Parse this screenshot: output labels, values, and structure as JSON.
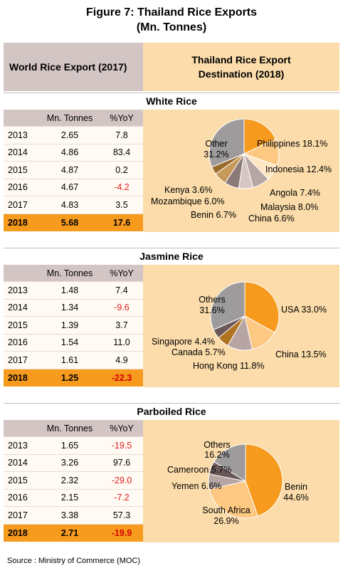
{
  "title": {
    "line1": "Figure 7: Thailand Rice Exports",
    "line2": "(Mn. Tonnes)"
  },
  "header": {
    "left": "World Rice Export (2017)",
    "right_line1": "Thailand Rice Export",
    "right_line2": "Destination (2018)"
  },
  "table_headers": {
    "mn": "Mn. Tonnes",
    "yoy": "%YoY"
  },
  "colors": {
    "orange": "#f79b1e",
    "light_orange": "#fcc882",
    "cream": "#ffe0b3",
    "peach": "#fbd7a6",
    "mauve": "#b7a5a4",
    "rose": "#cdb7b3",
    "dark_brown": "#6b5757",
    "brown": "#a9794a",
    "grey": "#9d9b9b",
    "tan": "#c8a482",
    "negative": "#e02020"
  },
  "chart_data": [
    {
      "type": "table",
      "name": "White Rice",
      "rows": [
        {
          "year": "2013",
          "mn": "2.65",
          "yoy": "7.8"
        },
        {
          "year": "2014",
          "mn": "4.86",
          "yoy": "83.4"
        },
        {
          "year": "2015",
          "mn": "4.87",
          "yoy": "0.2"
        },
        {
          "year": "2016",
          "mn": "4.67",
          "yoy": "-4.2"
        },
        {
          "year": "2017",
          "mn": "4.83",
          "yoy": "3.5"
        },
        {
          "year": "2018",
          "mn": "5.68",
          "yoy": "17.6"
        }
      ],
      "pie": {
        "type": "pie",
        "slices": [
          {
            "label": "Philippines",
            "value": 18.1,
            "text": "Philippines 18.1%",
            "color": "#f79b1e"
          },
          {
            "label": "Indonesia",
            "value": 12.4,
            "text": "Indonesia 12.4%",
            "color": "#fcc882"
          },
          {
            "label": "Angola",
            "value": 7.4,
            "text": "Angola 7.4%",
            "color": "#ffe6c2"
          },
          {
            "label": "Malaysia",
            "value": 8.0,
            "text": "Malaysia 8.0%",
            "color": "#b7a5a4"
          },
          {
            "label": "China",
            "value": 6.6,
            "text": "China 6.6%",
            "color": "#d6c6c2"
          },
          {
            "label": "Benin",
            "value": 6.7,
            "text": "Benin 6.7%",
            "color": "#8c7a79"
          },
          {
            "label": "Mozambique",
            "value": 6.0,
            "text": "Mozambique 6.0%",
            "color": "#c89a5a"
          },
          {
            "label": "Kenya",
            "value": 3.6,
            "text": "Kenya 3.6%",
            "color": "#9a6a2a"
          },
          {
            "label": "Other",
            "value": 31.2,
            "text_line1": "Other",
            "text_line2": "31.2%",
            "color": "#9d9b9b"
          }
        ]
      }
    },
    {
      "type": "table",
      "name": "Jasmine Rice",
      "rows": [
        {
          "year": "2013",
          "mn": "1.48",
          "yoy": "7.4"
        },
        {
          "year": "2014",
          "mn": "1.34",
          "yoy": "-9.6"
        },
        {
          "year": "2015",
          "mn": "1.39",
          "yoy": "3.7"
        },
        {
          "year": "2016",
          "mn": "1.54",
          "yoy": "11.0"
        },
        {
          "year": "2017",
          "mn": "1.61",
          "yoy": "4.9"
        },
        {
          "year": "2018",
          "mn": "1.25",
          "yoy": "-22.3"
        }
      ],
      "pie": {
        "type": "pie",
        "slices": [
          {
            "label": "USA",
            "value": 33.0,
            "text": "USA 33.0%",
            "color": "#f79b1e"
          },
          {
            "label": "China",
            "value": 13.5,
            "text": "China 13.5%",
            "color": "#fcc882"
          },
          {
            "label": "Hong Kong",
            "value": 11.8,
            "text": "Hong Kong 11.8%",
            "color": "#b7a5a4"
          },
          {
            "label": "Canada",
            "value": 5.7,
            "text": "Canada 5.7%",
            "color": "#b0731f"
          },
          {
            "label": "Singapore",
            "value": 4.4,
            "text": "Singapore 4.4%",
            "color": "#6b5757"
          },
          {
            "label": "Others",
            "value": 31.6,
            "text_line1": "Others",
            "text_line2": "31.6%",
            "color": "#9d9b9b"
          }
        ]
      }
    },
    {
      "type": "table",
      "name": "Parboiled Rice",
      "rows": [
        {
          "year": "2013",
          "mn": "1.65",
          "yoy": "-19.5"
        },
        {
          "year": "2014",
          "mn": "3.26",
          "yoy": "97.6"
        },
        {
          "year": "2015",
          "mn": "2.32",
          "yoy": "-29.0"
        },
        {
          "year": "2016",
          "mn": "2.15",
          "yoy": "-7.2"
        },
        {
          "year": "2017",
          "mn": "3.38",
          "yoy": "57.3"
        },
        {
          "year": "2018",
          "mn": "2.71",
          "yoy": "-19.9"
        }
      ],
      "pie": {
        "type": "pie",
        "slices": [
          {
            "label": "Benin",
            "value": 44.6,
            "text_line1": "Benin",
            "text_line2": "44.6%",
            "color": "#f79b1e"
          },
          {
            "label": "South Africa",
            "value": 26.9,
            "text_line1": "South Africa",
            "text_line2": "26.9%",
            "color": "#fcc882"
          },
          {
            "label": "Yemen",
            "value": 6.6,
            "text": "Yemen 6.6%",
            "color": "#b7a5a4"
          },
          {
            "label": "Cameroon",
            "value": 5.7,
            "text": "Cameroon 5.7%",
            "color": "#6b5757"
          },
          {
            "label": "Others",
            "value": 16.2,
            "text_line1": "Others",
            "text_line2": "16.2%",
            "color": "#9d9b9b"
          }
        ]
      }
    }
  ],
  "source": "Source : Ministry of Commerce (MOC)"
}
